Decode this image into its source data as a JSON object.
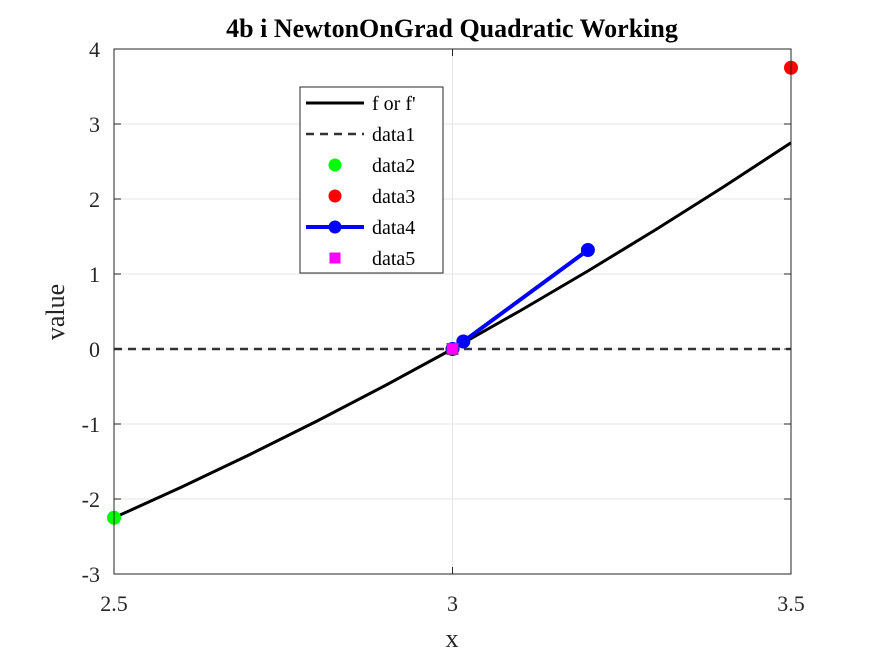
{
  "chart_data": {
    "type": "line",
    "title": "4b i NewtonOnGrad Quadratic Working",
    "xlabel": "x",
    "ylabel": "value",
    "xlim": [
      2.5,
      3.5
    ],
    "ylim": [
      -3,
      4
    ],
    "grid": true,
    "legend_position": "top-center",
    "xticks": [
      2.5,
      3,
      3.5
    ],
    "xtick_labels": [
      "2.5",
      "3",
      "3.5"
    ],
    "yticks": [
      -3,
      -2,
      -1,
      0,
      1,
      2,
      3,
      4
    ],
    "ytick_labels": [
      "-3",
      "-2",
      "-1",
      "0",
      "1",
      "2",
      "3",
      "4"
    ],
    "series": [
      {
        "name": "f or f'",
        "style": "solid-line",
        "color": "#000000",
        "x": [
          2.5,
          2.6,
          2.7,
          2.8,
          2.9,
          3.0,
          3.1,
          3.2,
          3.3,
          3.4,
          3.5
        ],
        "y": [
          -2.25,
          -1.84,
          -1.41,
          -0.96,
          -0.49,
          0.0,
          0.51,
          1.04,
          1.59,
          2.16,
          2.75
        ]
      },
      {
        "name": "data1",
        "style": "dashed-line",
        "color": "#333333",
        "x": [
          2.5,
          3.5
        ],
        "y": [
          0,
          0
        ]
      },
      {
        "name": "data2",
        "style": "marker-circle",
        "color": "#00ff00",
        "x": [
          2.5
        ],
        "y": [
          -2.25
        ]
      },
      {
        "name": "data3",
        "style": "marker-circle",
        "color": "#ff0000",
        "x": [
          3.5
        ],
        "y": [
          3.75
        ]
      },
      {
        "name": "data4",
        "style": "line-marker-circle",
        "color": "#0000ff",
        "x": [
          3.2,
          3.016,
          3.0
        ],
        "y": [
          1.32,
          0.1,
          0.0
        ]
      },
      {
        "name": "data5",
        "style": "marker-square",
        "color": "#ff00ff",
        "x": [
          3.0
        ],
        "y": [
          0.0
        ]
      }
    ]
  }
}
